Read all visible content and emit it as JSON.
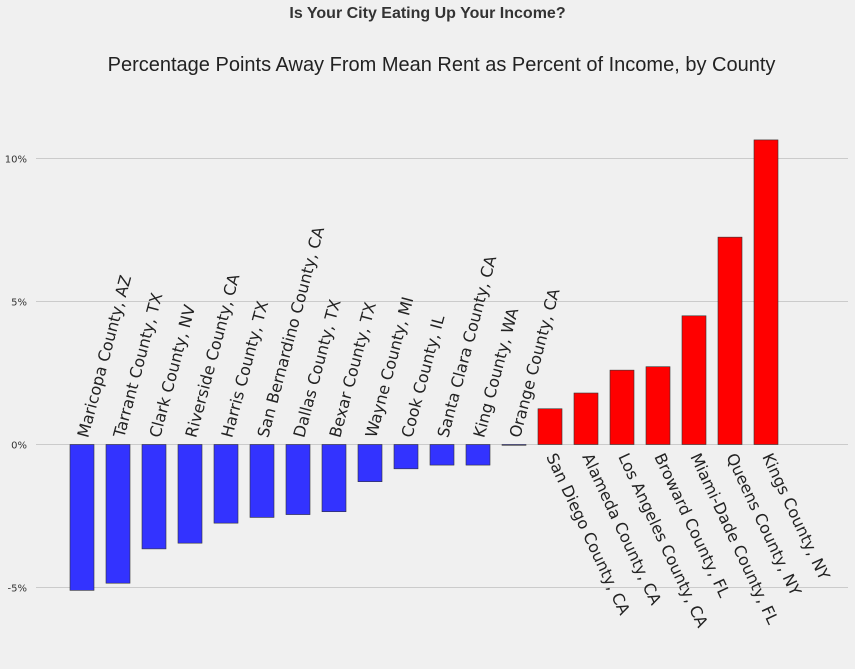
{
  "suptitle": "Is Your City Eating Up Your Income?",
  "chart_data": {
    "type": "bar",
    "title": "Percentage Points Away From Mean Rent as Percent of Income, by County",
    "xlabel": "",
    "ylabel": "",
    "ylim": [
      -6.0,
      11.0
    ],
    "yticks": [
      {
        "value": -5,
        "label": "-5%"
      },
      {
        "value": 0,
        "label": "0%"
      },
      {
        "value": 5,
        "label": "5%"
      },
      {
        "value": 10,
        "label": "10%"
      }
    ],
    "grid": "horizontal",
    "categories": [
      "Maricopa County, AZ",
      "Tarrant County, TX",
      "Clark County, NV",
      "Riverside County, CA",
      "Harris County, TX",
      "San Bernardino County, CA",
      "Dallas County, TX",
      "Bexar County, TX",
      "Wayne County, MI",
      "Cook County, IL",
      "Santa Clara County, CA",
      "King County, WA",
      "Orange County, CA",
      "San Diego County, CA",
      "Alameda County, CA",
      "Los Angeles County, CA",
      "Broward County, FL",
      "Miami-Dade County, FL",
      "Queens County, NY",
      "Kings County, NY"
    ],
    "values": [
      -5.1,
      -4.85,
      -3.65,
      -3.45,
      -2.75,
      -2.55,
      -2.45,
      -2.35,
      -1.3,
      -0.85,
      -0.72,
      -0.72,
      -0.02,
      1.25,
      1.8,
      2.6,
      2.72,
      4.5,
      7.25,
      10.65
    ],
    "colors": {
      "negative": "#3333ff",
      "positive": "#ff0000",
      "grid": "#cbcbcb",
      "bar_edge": "#333333"
    }
  }
}
